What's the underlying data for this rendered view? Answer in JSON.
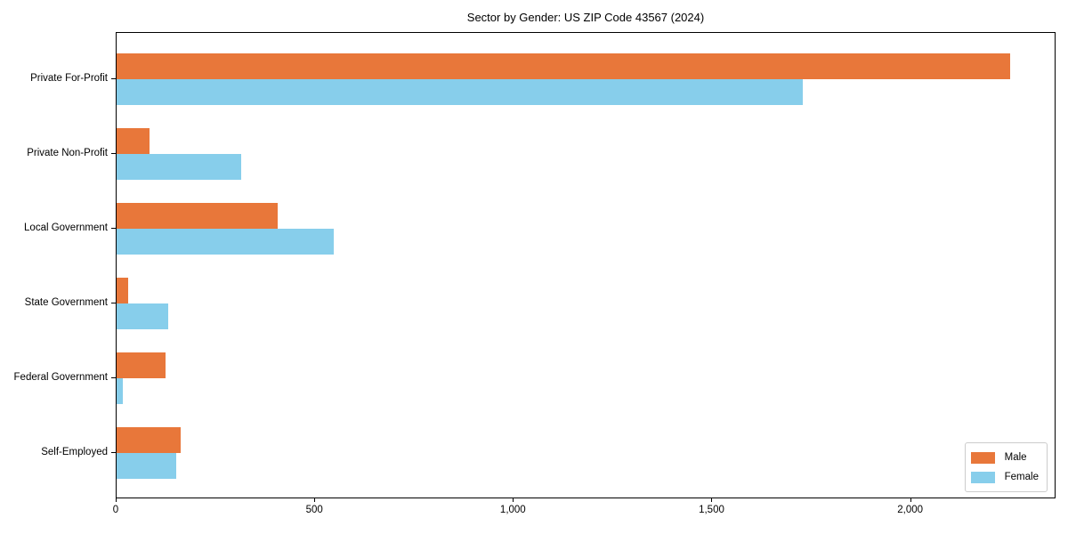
{
  "chart_data": {
    "type": "bar",
    "orientation": "horizontal",
    "title": "Sector by Gender: US ZIP Code 43567 (2024)",
    "xlabel": "",
    "ylabel": "",
    "categories": [
      "Private For-Profit",
      "Private Non-Profit",
      "Local Government",
      "State Government",
      "Federal Government",
      "Self-Employed"
    ],
    "series": [
      {
        "name": "Male",
        "color": "#e8773a",
        "values": [
          2253,
          82,
          407,
          29,
          123,
          162
        ]
      },
      {
        "name": "Female",
        "color": "#87ceeb",
        "values": [
          1730,
          314,
          548,
          130,
          15,
          151
        ]
      }
    ],
    "xlim": [
      0,
      2366
    ],
    "xticks": [
      0,
      500,
      1000,
      1500,
      2000
    ],
    "xtick_labels": [
      "0",
      "500",
      "1,000",
      "1,500",
      "2,000"
    ],
    "grid": false,
    "legend_position": "lower right",
    "plot_background": "#ffffff",
    "spine_color": "#000000"
  }
}
